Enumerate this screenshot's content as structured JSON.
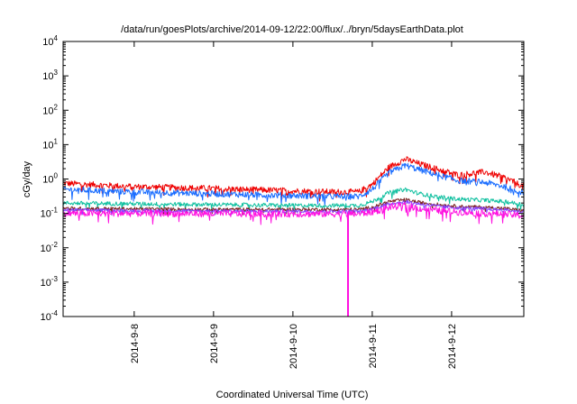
{
  "chart_data": {
    "type": "line",
    "title": "/data/run/goesPlots/archive/2014-09-12/22:00/flux/../bryn/5daysEarthData.plot",
    "xlabel": "Coordinated Universal Time (UTC)",
    "ylabel": "cGy/day",
    "yscale": "log",
    "ylim": [
      0.0001,
      10000
    ],
    "xlim": [
      "2014-09-07T02:30",
      "2014-09-12T21:50"
    ],
    "grid": false,
    "legend": "none",
    "yticks": [
      {
        "value": 0.0001,
        "base": "10",
        "exp": "-4"
      },
      {
        "value": 0.001,
        "base": "10",
        "exp": "-3"
      },
      {
        "value": 0.01,
        "base": "10",
        "exp": "-2"
      },
      {
        "value": 0.1,
        "base": "10",
        "exp": "-1"
      },
      {
        "value": 1,
        "base": "10",
        "exp": "0"
      },
      {
        "value": 10,
        "base": "10",
        "exp": "1"
      },
      {
        "value": 100,
        "base": "10",
        "exp": "2"
      },
      {
        "value": 1000,
        "base": "10",
        "exp": "3"
      },
      {
        "value": 10000,
        "base": "10",
        "exp": "4"
      }
    ],
    "xticks": [
      {
        "value": "2014-09-08T00:00",
        "label": "2014-9-8"
      },
      {
        "value": "2014-09-09T00:00",
        "label": "2014-9-9"
      },
      {
        "value": "2014-09-10T00:00",
        "label": "2014-9-10"
      },
      {
        "value": "2014-09-11T00:00",
        "label": "2014-9-11"
      },
      {
        "value": "2014-09-12T00:00",
        "label": "2014-9-12"
      }
    ],
    "series": [
      {
        "color": "#ee0000",
        "noise": 0.09,
        "x": [
          "2014-09-07T02:30",
          "2014-09-08T00:00",
          "2014-09-09T00:00",
          "2014-09-10T00:00",
          "2014-09-10T12:00",
          "2014-09-10T20:00",
          "2014-09-11T00:00",
          "2014-09-11T05:00",
          "2014-09-11T10:00",
          "2014-09-11T14:00",
          "2014-09-11T20:00",
          "2014-09-12T02:00",
          "2014-09-12T10:00",
          "2014-09-12T16:00",
          "2014-09-12T21:50"
        ],
        "y": [
          0.75,
          0.6,
          0.53,
          0.45,
          0.42,
          0.42,
          0.7,
          2.2,
          3.8,
          2.8,
          1.9,
          1.3,
          1.6,
          1.1,
          0.6
        ]
      },
      {
        "color": "#1a6dff",
        "noise": 0.09,
        "x": [
          "2014-09-07T02:30",
          "2014-09-08T00:00",
          "2014-09-09T00:00",
          "2014-09-10T00:00",
          "2014-09-10T12:00",
          "2014-09-10T20:00",
          "2014-09-11T00:00",
          "2014-09-11T05:00",
          "2014-09-11T10:00",
          "2014-09-11T14:00",
          "2014-09-11T20:00",
          "2014-09-12T02:00",
          "2014-09-12T10:00",
          "2014-09-12T16:00",
          "2014-09-12T21:50"
        ],
        "y": [
          0.5,
          0.42,
          0.37,
          0.33,
          0.31,
          0.31,
          0.5,
          1.5,
          2.5,
          1.9,
          1.3,
          0.9,
          0.8,
          0.6,
          0.4
        ]
      },
      {
        "color": "#10c0a0",
        "noise": 0.06,
        "x": [
          "2014-09-07T02:30",
          "2014-09-08T00:00",
          "2014-09-09T00:00",
          "2014-09-10T00:00",
          "2014-09-10T12:00",
          "2014-09-10T20:00",
          "2014-09-11T00:00",
          "2014-09-11T05:00",
          "2014-09-11T10:00",
          "2014-09-11T14:00",
          "2014-09-11T20:00",
          "2014-09-12T02:00",
          "2014-09-12T10:00",
          "2014-09-12T16:00",
          "2014-09-12T21:50"
        ],
        "y": [
          0.2,
          0.19,
          0.18,
          0.17,
          0.17,
          0.17,
          0.22,
          0.4,
          0.5,
          0.38,
          0.3,
          0.26,
          0.24,
          0.22,
          0.18
        ]
      },
      {
        "color": "#7a2020",
        "noise": 0.05,
        "x": [
          "2014-09-07T02:30",
          "2014-09-08T00:00",
          "2014-09-09T00:00",
          "2014-09-10T00:00",
          "2014-09-10T12:00",
          "2014-09-10T20:00",
          "2014-09-11T00:00",
          "2014-09-11T05:00",
          "2014-09-11T10:00",
          "2014-09-11T14:00",
          "2014-09-11T20:00",
          "2014-09-12T02:00",
          "2014-09-12T10:00",
          "2014-09-12T16:00",
          "2014-09-12T21:50"
        ],
        "y": [
          0.14,
          0.135,
          0.13,
          0.13,
          0.13,
          0.13,
          0.15,
          0.22,
          0.25,
          0.21,
          0.18,
          0.16,
          0.15,
          0.14,
          0.12
        ]
      },
      {
        "color": "#8844ff",
        "noise": 0.05,
        "x": [
          "2014-09-07T02:30",
          "2014-09-08T00:00",
          "2014-09-09T00:00",
          "2014-09-10T00:00",
          "2014-09-10T12:00",
          "2014-09-10T20:00",
          "2014-09-11T00:00",
          "2014-09-11T05:00",
          "2014-09-11T10:00",
          "2014-09-11T14:00",
          "2014-09-11T20:00",
          "2014-09-12T02:00",
          "2014-09-12T10:00",
          "2014-09-12T16:00",
          "2014-09-12T21:50"
        ],
        "y": [
          0.125,
          0.12,
          0.118,
          0.115,
          0.115,
          0.115,
          0.135,
          0.19,
          0.22,
          0.19,
          0.16,
          0.145,
          0.135,
          0.125,
          0.11
        ]
      },
      {
        "color": "#ff10e0",
        "noise": 0.1,
        "x": [
          "2014-09-07T02:30",
          "2014-09-08T00:00",
          "2014-09-09T00:00",
          "2014-09-10T00:00",
          "2014-09-10T12:00",
          "2014-09-10T20:00",
          "2014-09-11T00:00",
          "2014-09-11T05:00",
          "2014-09-11T10:00",
          "2014-09-11T14:00",
          "2014-09-11T20:00",
          "2014-09-12T02:00",
          "2014-09-12T10:00",
          "2014-09-12T16:00",
          "2014-09-12T21:50"
        ],
        "y": [
          0.1,
          0.1,
          0.098,
          0.097,
          0.097,
          0.097,
          0.11,
          0.15,
          0.17,
          0.14,
          0.12,
          0.11,
          0.1,
          0.095,
          0.085
        ],
        "dropout": {
          "x": "2014-09-10T16:40",
          "y": 0.0001
        }
      }
    ]
  }
}
